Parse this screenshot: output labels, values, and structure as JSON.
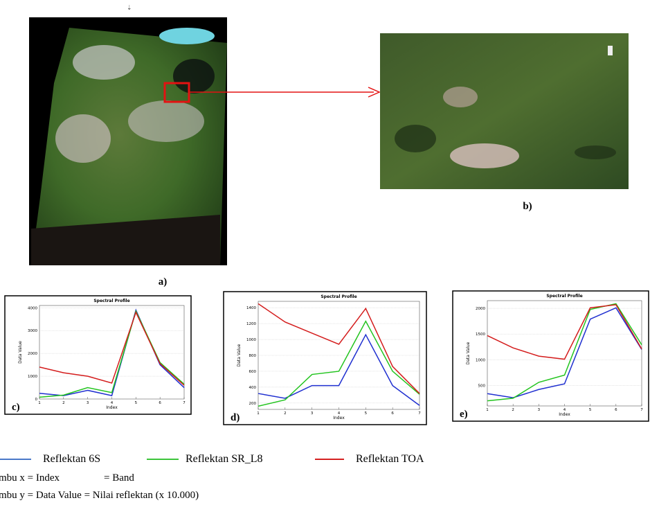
{
  "image_labels": [
    "a)",
    "b)"
  ],
  "chart_data": [
    {
      "type": "line",
      "panel_label": "c)",
      "title": "Spectral Profile",
      "x_label": "Index",
      "y_label": "Data Value",
      "x": [
        1,
        2,
        3,
        4,
        5,
        6,
        7
      ],
      "xlim": [
        1,
        7
      ],
      "xticks": [
        1,
        2,
        3,
        4,
        5,
        6,
        7
      ],
      "ylim": [
        0,
        4100
      ],
      "yticks": [
        0,
        1000,
        2000,
        3000,
        4000
      ],
      "series": [
        {
          "color": "#1f2fd0",
          "values": [
            250,
            150,
            380,
            150,
            3900,
            1500,
            500
          ]
        },
        {
          "color": "#22c41e",
          "values": [
            80,
            170,
            500,
            280,
            3850,
            1600,
            650
          ]
        },
        {
          "color": "#d41c1c",
          "values": [
            1400,
            1150,
            1000,
            700,
            3800,
            1550,
            600
          ]
        }
      ]
    },
    {
      "type": "line",
      "panel_label": "d)",
      "title": "Spectral Profile",
      "x_label": "Index",
      "y_label": "Data Value",
      "x": [
        1,
        2,
        3,
        4,
        5,
        6,
        7
      ],
      "xlim": [
        1,
        7
      ],
      "xticks": [
        1,
        2,
        3,
        4,
        5,
        6,
        7
      ],
      "ylim": [
        120,
        1480
      ],
      "yticks": [
        200,
        400,
        600,
        800,
        1000,
        1200,
        1400
      ],
      "series": [
        {
          "color": "#1f2fd0",
          "values": [
            320,
            260,
            420,
            420,
            1060,
            420,
            170
          ]
        },
        {
          "color": "#22c41e",
          "values": [
            160,
            240,
            560,
            600,
            1230,
            600,
            310
          ]
        },
        {
          "color": "#d41c1c",
          "values": [
            1450,
            1220,
            1080,
            940,
            1390,
            660,
            320
          ]
        }
      ]
    },
    {
      "type": "line",
      "panel_label": "e)",
      "title": "Spectral Profile",
      "x_label": "Index",
      "y_label": "Data Value",
      "x": [
        1,
        2,
        3,
        4,
        5,
        6,
        7
      ],
      "xlim": [
        1,
        7
      ],
      "xticks": [
        1,
        2,
        3,
        4,
        5,
        6,
        7
      ],
      "ylim": [
        100,
        2150
      ],
      "yticks": [
        500,
        1000,
        1500,
        2000
      ],
      "series": [
        {
          "color": "#1f2fd0",
          "values": [
            340,
            260,
            420,
            530,
            1790,
            2010,
            1200
          ]
        },
        {
          "color": "#22c41e",
          "values": [
            200,
            250,
            560,
            700,
            1980,
            2090,
            1290
          ]
        },
        {
          "color": "#d41c1c",
          "values": [
            1470,
            1230,
            1070,
            1010,
            2010,
            2070,
            1210
          ]
        }
      ]
    }
  ],
  "legend": [
    {
      "label": "Reflektan 6S",
      "color": "#4a78c8"
    },
    {
      "label": "Reflektan SR_L8",
      "color": "#3cc43a"
    },
    {
      "label": "Reflektan TOA",
      "color": "#d42020"
    }
  ],
  "notes": {
    "x_axis": "mbu x = Index",
    "x_axis_eq": "= Band",
    "y_axis": "mbu y = Data Value = Nilai reflektan (x 10.000)"
  }
}
